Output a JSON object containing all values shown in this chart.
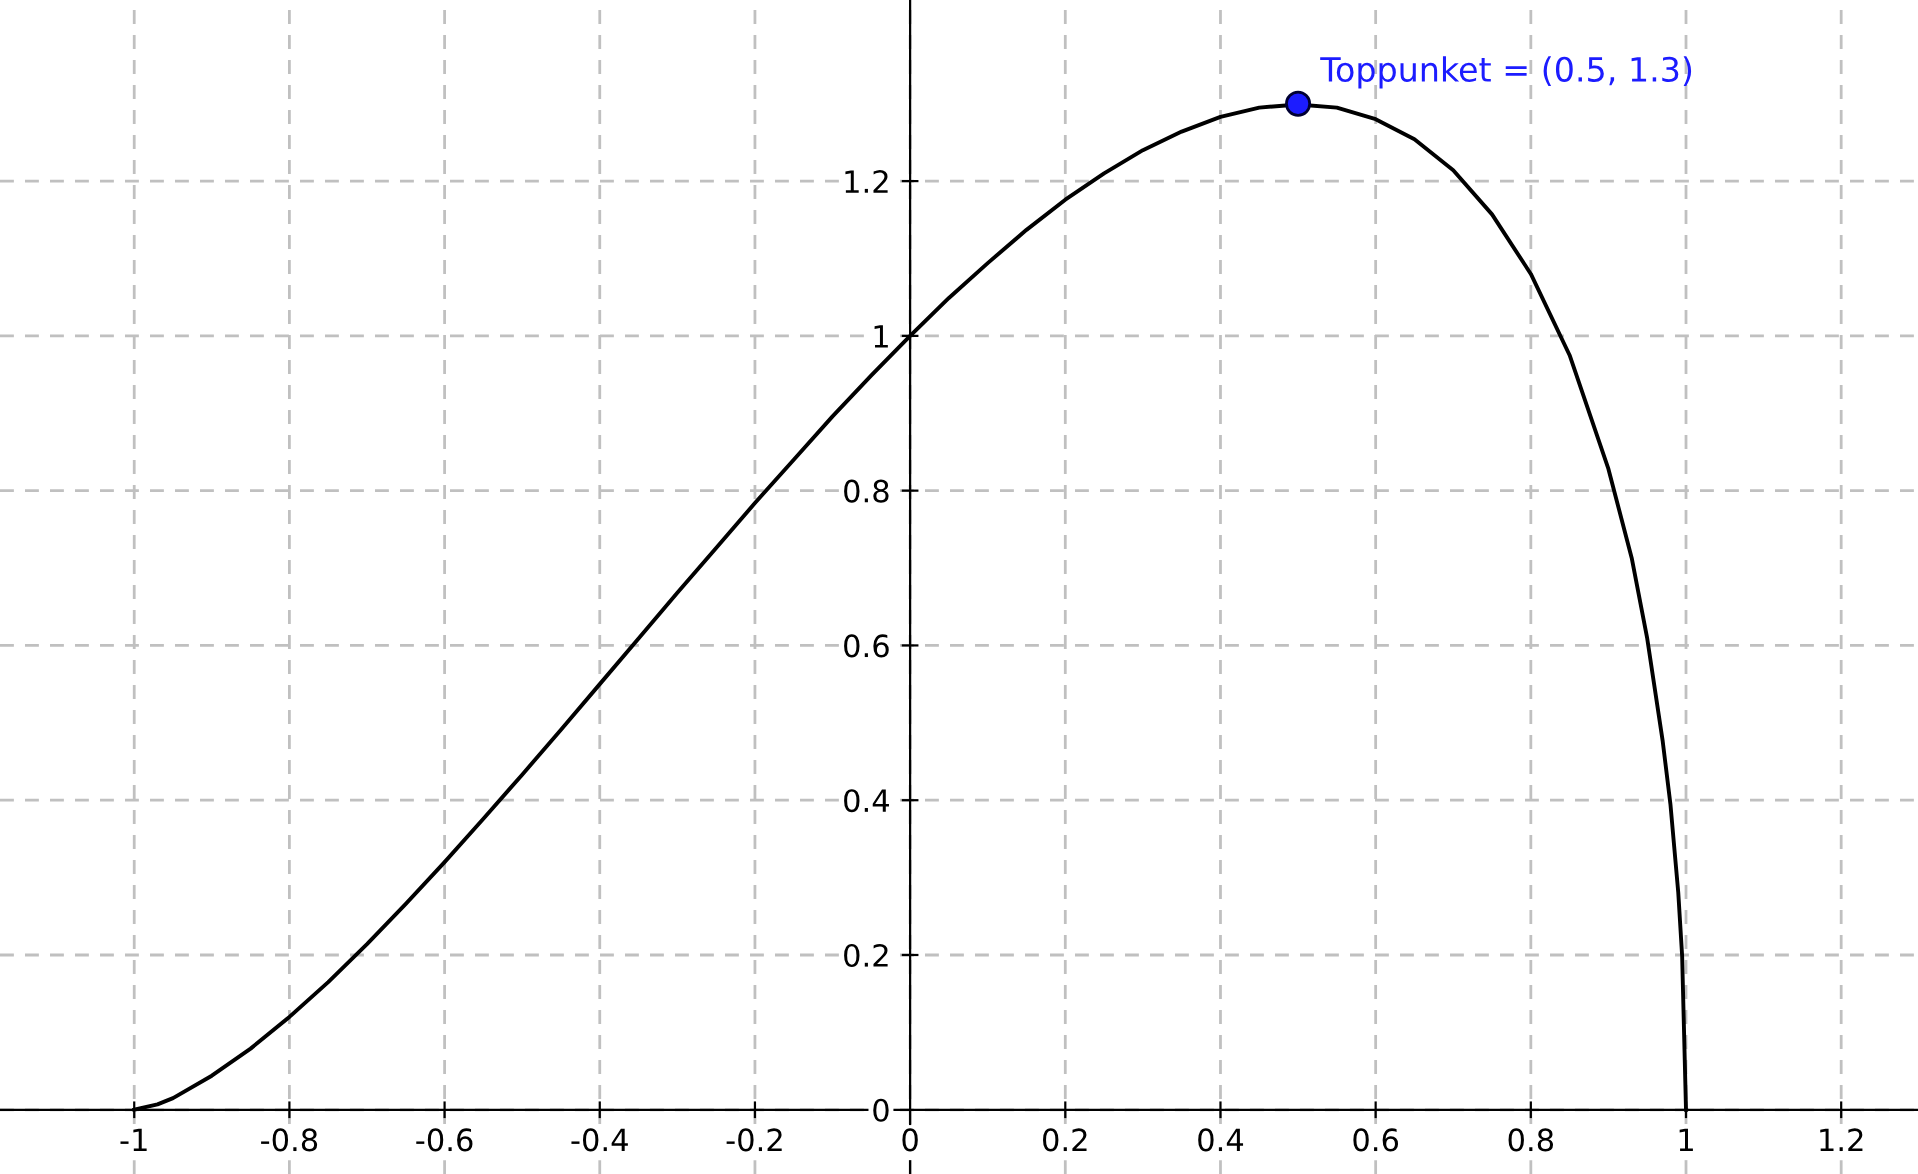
{
  "chart_data": {
    "type": "line",
    "series": [
      {
        "color": "#000000",
        "marker": "none",
        "x": [
          -1,
          -0.97,
          -0.95,
          -0.9,
          -0.85,
          -0.8,
          -0.75,
          -0.7,
          -0.65,
          -0.6,
          -0.55,
          -0.5,
          -0.45,
          -0.4,
          -0.35,
          -0.3,
          -0.25,
          -0.2,
          -0.15,
          -0.1,
          -0.05,
          0,
          0.05,
          0.1,
          0.15,
          0.2,
          0.25,
          0.3,
          0.35,
          0.4,
          0.45,
          0.5,
          0.55,
          0.6,
          0.65,
          0.7,
          0.75,
          0.8,
          0.85,
          0.9,
          0.93,
          0.95,
          0.97,
          0.98,
          0.99,
          0.995,
          1
        ],
        "values": [
          0,
          0.007,
          0.015,
          0.044,
          0.079,
          0.12,
          0.165,
          0.214,
          0.266,
          0.32,
          0.376,
          0.433,
          0.491,
          0.55,
          0.609,
          0.668,
          0.726,
          0.784,
          0.84,
          0.896,
          0.949,
          1,
          1.049,
          1.094,
          1.137,
          1.176,
          1.21,
          1.24,
          1.264,
          1.283,
          1.295,
          1.299,
          1.295,
          1.28,
          1.254,
          1.214,
          1.157,
          1.08,
          0.975,
          0.828,
          0.713,
          0.609,
          0.476,
          0.394,
          0.281,
          0.199,
          0
        ]
      },
      {
        "type": "scatter",
        "color": "#1c1cff",
        "marker": "circle",
        "x": [
          0.5
        ],
        "values": [
          1.3
        ]
      }
    ],
    "annotations": [
      {
        "text": "Toppunket = (0.5, 1.3)",
        "x": 0.5,
        "y": 1.3
      }
    ],
    "xlim": [
      -1.173,
      1.299
    ],
    "ylim": [
      -0.083,
      1.434
    ],
    "xticks": [
      -1,
      -0.8,
      -0.6,
      -0.4,
      -0.2,
      0,
      0.2,
      0.4,
      0.6,
      0.8,
      1,
      1.2
    ],
    "yticks": [
      0,
      0.2,
      0.4,
      0.6,
      0.8,
      1,
      1.2
    ],
    "grid": true
  }
}
